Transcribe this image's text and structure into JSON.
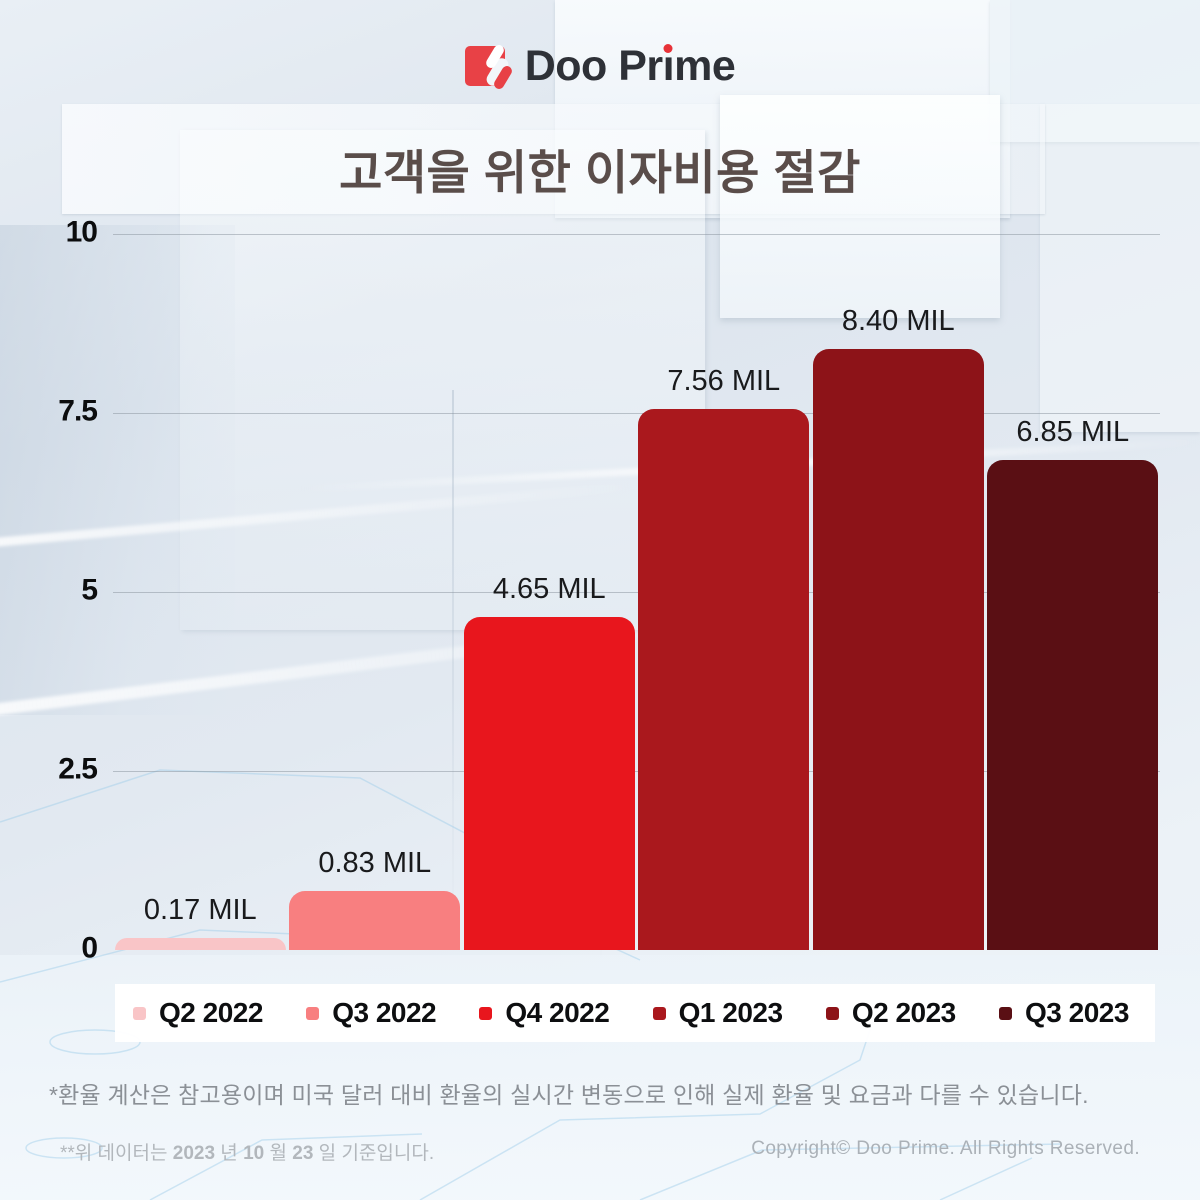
{
  "logo": {
    "text_before_i": "Doo Pr",
    "i_stem": "ı",
    "text_after_i": "me"
  },
  "title": "고객을 위한 이자비용 절감",
  "chart_data": {
    "type": "bar",
    "title": "고객을 위한 이자비용 절감",
    "categories": [
      "Q2 2022",
      "Q3 2022",
      "Q4 2022",
      "Q1 2023",
      "Q2 2023",
      "Q3 2023"
    ],
    "values": [
      0.17,
      0.83,
      4.65,
      7.56,
      8.4,
      6.85
    ],
    "value_labels": [
      "0.17 MIL",
      "0.83 MIL",
      "4.65 MIL",
      "7.56 MIL",
      "8.40 MIL",
      "6.85 MIL"
    ],
    "bar_colors": [
      "#f9c5c7",
      "#f87f80",
      "#e8161d",
      "#aa181d",
      "#8d1318",
      "#5a0f14"
    ],
    "unit": "MIL",
    "xlabel": "",
    "ylabel": "",
    "ylim": [
      0,
      10
    ],
    "yticks": [
      0,
      2.5,
      5,
      7.5,
      10
    ],
    "ytick_labels": [
      "0",
      "2.5",
      "5",
      "7.5",
      "10"
    ],
    "grid": true,
    "legend_position": "bottom"
  },
  "footnote": "*환율 계산은 참고용이며 미국 달러 대비 환율의 실시간 변동으로 인해 실제 환율 및 요금과 다를 수 있습니다.",
  "footer": {
    "data_note_parts": [
      {
        "text": "**위 데이터는 ",
        "bold": false
      },
      {
        "text": "2023",
        "bold": true
      },
      {
        "text": " 년 ",
        "bold": false
      },
      {
        "text": "10",
        "bold": true
      },
      {
        "text": " 월 ",
        "bold": false
      },
      {
        "text": "23",
        "bold": true
      },
      {
        "text": " 일 기준입니다.",
        "bold": false
      }
    ],
    "copyright": "Copyright© Doo Prime. All Rights Reserved."
  }
}
